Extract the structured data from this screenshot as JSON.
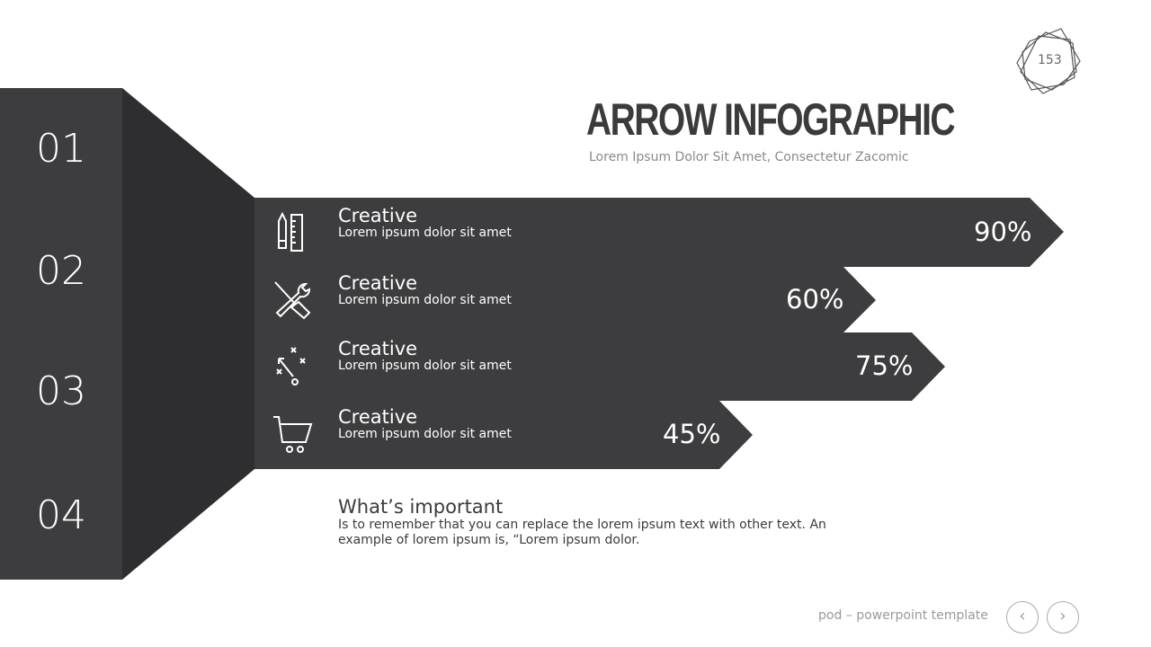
{
  "slide_number": "153",
  "title": "ARROW INFOGRAPHIC",
  "subtitle": "Lorem Ipsum Dolor Sit Amet, Consectetur Zacomic",
  "numbers": [
    "01",
    "02",
    "03",
    "04"
  ],
  "rows": [
    {
      "heading": "Creative",
      "text": "Lorem ipsum dolor sit amet",
      "percent": "90%",
      "value": 90,
      "icon": "pencil-ruler-icon"
    },
    {
      "heading": "Creative",
      "text": "Lorem ipsum dolor sit amet",
      "percent": "60%",
      "value": 60,
      "icon": "tools-icon"
    },
    {
      "heading": "Creative",
      "text": "Lorem ipsum dolor sit amet",
      "percent": "75%",
      "value": 75,
      "icon": "strategy-icon"
    },
    {
      "heading": "Creative",
      "text": "Lorem ipsum dolor sit amet",
      "percent": "45%",
      "value": 45,
      "icon": "shopping-cart-icon"
    }
  ],
  "important": {
    "heading": "What’s important",
    "text": "Is to remember that you can replace the lorem ipsum text with other text. An example of lorem ipsum is, “Lorem ipsum dolor."
  },
  "footer": {
    "text": "pod – powerpoint template",
    "prev": "‹",
    "next": "›"
  },
  "colors": {
    "panel": "#3d3c3e",
    "funnel": "#2e2d2f",
    "bar": "#3d3c3e"
  }
}
